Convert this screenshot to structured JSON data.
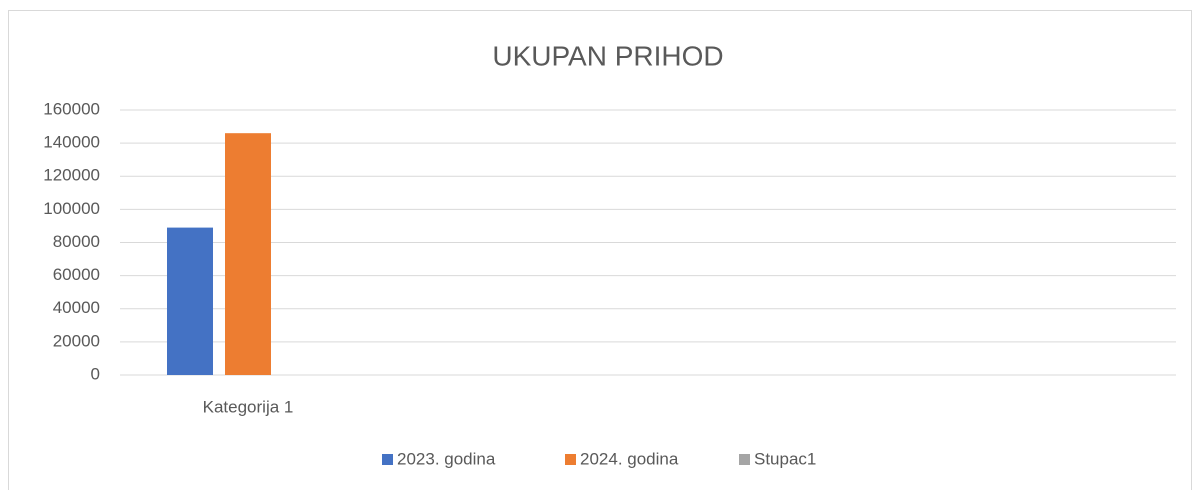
{
  "chart_data": {
    "type": "bar",
    "title": "UKUPAN PRIHOD",
    "categories": [
      "Kategorija 1"
    ],
    "series": [
      {
        "name": "2023. godina",
        "color": "#4472c4",
        "values": [
          89000
        ]
      },
      {
        "name": "2024. godina",
        "color": "#ed7d31",
        "values": [
          146000
        ]
      },
      {
        "name": "Stupac1",
        "color": "#a5a5a5",
        "values": [
          null
        ]
      }
    ],
    "ylim": [
      0,
      160000
    ],
    "yticks": [
      0,
      20000,
      40000,
      60000,
      80000,
      100000,
      120000,
      140000,
      160000
    ],
    "grid": true,
    "legend": "bottom"
  }
}
